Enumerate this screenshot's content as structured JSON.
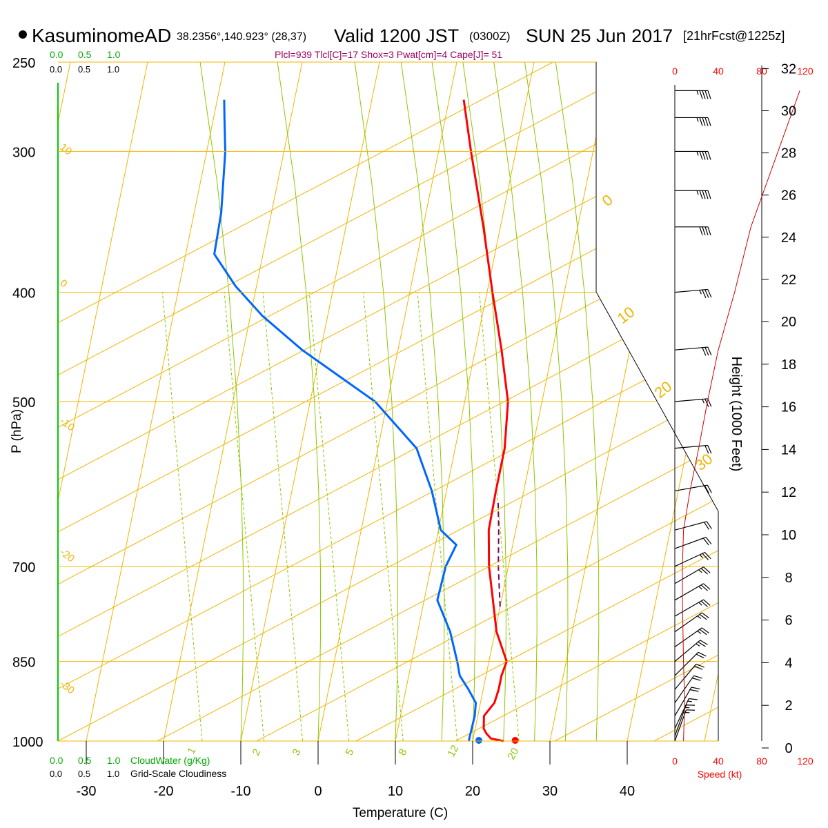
{
  "header": {
    "station": "KasuminomeAD",
    "coords": "38.2356°,140.923° (28,37)",
    "valid_label": "Valid 1200 JST",
    "utc": "(0300Z)",
    "date": "SUN 25 Jun 2017",
    "forecast": "[21hrFcst@1225z]",
    "indices": "Plcl=939 Tlcl[C]=17 Shox=3 Pwat[cm]=4 Cape[J]= 51"
  },
  "colors": {
    "isotherm": "#f0b400",
    "dry_adiabat": "#f0b400",
    "moist_adiabat": "#88c800",
    "mixing_ratio": "#88c800",
    "temperature": "#ff0000",
    "dewpoint": "#0066ff",
    "parcel": "#800060",
    "cloudwater": "#00aa00",
    "speed": "#ff0000",
    "height_profile": "#cc0000",
    "indices_text": "#990066"
  },
  "scales": {
    "cloudwater_top": [
      "0.0",
      "0.5",
      "1.0"
    ],
    "cloudiness_top": [
      "0.0",
      "0.5",
      "1.0"
    ],
    "cloudwater_bottom": [
      "0.0",
      "0.5",
      "1.0"
    ],
    "cloudwater_label": "CloudWater (g/Kg)",
    "cloudiness_bottom": [
      "0.0",
      "0.5",
      "1.0"
    ],
    "cloudiness_label": "Grid-Scale Cloudiness",
    "speed_ticks": [
      "0",
      "40",
      "80",
      "120"
    ],
    "speed_label": "Speed (kt)"
  },
  "chart_data": {
    "type": "line",
    "subtype": "skew-T log-P sounding",
    "xlabel": "Temperature (C)",
    "ylabel": "P (hPa)",
    "y2label": "Height (1000 Feet)",
    "x_ticks": [
      -30,
      -20,
      -10,
      0,
      10,
      20,
      30,
      40
    ],
    "p_ticks": [
      250,
      300,
      400,
      500,
      700,
      850,
      1000
    ],
    "height_ticks": [
      0,
      2,
      4,
      6,
      8,
      10,
      12,
      14,
      16,
      18,
      20,
      22,
      24,
      26,
      28,
      30,
      32
    ],
    "isotherm_labels": [
      {
        "t": 10,
        "text": "10"
      },
      {
        "t": 0,
        "text": "0"
      },
      {
        "t": -10,
        "text": "-10"
      },
      {
        "t": -20,
        "text": "-20"
      },
      {
        "t": -30,
        "text": "-30"
      }
    ],
    "right_isotherm_labels": [
      "0",
      "10",
      "20",
      "30"
    ],
    "mixing_ratio_labels": [
      "1",
      "2",
      "3",
      "5",
      "8",
      "12",
      "20"
    ],
    "temperature": [
      {
        "p": 1000,
        "t": 24.0
      },
      {
        "p": 995,
        "t": 22.3
      },
      {
        "p": 985,
        "t": 21.6
      },
      {
        "p": 975,
        "t": 21.1
      },
      {
        "p": 950,
        "t": 20.8
      },
      {
        "p": 925,
        "t": 21.8
      },
      {
        "p": 900,
        "t": 22.0
      },
      {
        "p": 875,
        "t": 22.0
      },
      {
        "p": 850,
        "t": 22.3
      },
      {
        "p": 800,
        "t": 20.2
      },
      {
        "p": 750,
        "t": 18.9
      },
      {
        "p": 700,
        "t": 17.5
      },
      {
        "p": 650,
        "t": 16.5
      },
      {
        "p": 600,
        "t": 16.4
      },
      {
        "p": 550,
        "t": 16.4
      },
      {
        "p": 500,
        "t": 15.6
      },
      {
        "p": 450,
        "t": 13.4
      },
      {
        "p": 400,
        "t": 10.7
      },
      {
        "p": 350,
        "t": 7.8
      },
      {
        "p": 300,
        "t": 4.2
      },
      {
        "p": 270,
        "t": 1.9
      }
    ],
    "dewpoint": [
      {
        "p": 1000,
        "t": 19.5
      },
      {
        "p": 990,
        "t": 19.5
      },
      {
        "p": 950,
        "t": 19.6
      },
      {
        "p": 925,
        "t": 19.4
      },
      {
        "p": 900,
        "t": 18.1
      },
      {
        "p": 875,
        "t": 16.6
      },
      {
        "p": 850,
        "t": 15.9
      },
      {
        "p": 800,
        "t": 14.2
      },
      {
        "p": 750,
        "t": 11.7
      },
      {
        "p": 700,
        "t": 11.9
      },
      {
        "p": 670,
        "t": 12.7
      },
      {
        "p": 650,
        "t": 10.3
      },
      {
        "p": 600,
        "t": 8.1
      },
      {
        "p": 550,
        "t": 5.0
      },
      {
        "p": 500,
        "t": -1.6
      },
      {
        "p": 450,
        "t": -12.4
      },
      {
        "p": 420,
        "t": -18.4
      },
      {
        "p": 395,
        "t": -22.7
      },
      {
        "p": 370,
        "t": -26.3
      },
      {
        "p": 340,
        "t": -26.5
      },
      {
        "p": 300,
        "t": -27.6
      },
      {
        "p": 280,
        "t": -28.6
      },
      {
        "p": 270,
        "t": -29.1
      }
    ],
    "parcel": [
      {
        "p": 760,
        "t": 20.0
      },
      {
        "p": 700,
        "t": 18.7
      },
      {
        "p": 650,
        "t": 17.8
      },
      {
        "p": 615,
        "t": 17.0
      }
    ],
    "surface_temperature": 25.5,
    "surface_dewpoint": 20.8,
    "wind_barbs": [
      {
        "p": 1000,
        "dir": 200,
        "spd": 15
      },
      {
        "p": 990,
        "dir": 200,
        "spd": 15
      },
      {
        "p": 975,
        "dir": 205,
        "spd": 15
      },
      {
        "p": 950,
        "dir": 210,
        "spd": 20
      },
      {
        "p": 925,
        "dir": 215,
        "spd": 20
      },
      {
        "p": 900,
        "dir": 220,
        "spd": 20
      },
      {
        "p": 875,
        "dir": 225,
        "spd": 20
      },
      {
        "p": 850,
        "dir": 230,
        "spd": 25
      },
      {
        "p": 825,
        "dir": 235,
        "spd": 25
      },
      {
        "p": 800,
        "dir": 235,
        "spd": 25
      },
      {
        "p": 775,
        "dir": 240,
        "spd": 25
      },
      {
        "p": 750,
        "dir": 240,
        "spd": 25
      },
      {
        "p": 725,
        "dir": 240,
        "spd": 25
      },
      {
        "p": 700,
        "dir": 245,
        "spd": 25
      },
      {
        "p": 675,
        "dir": 250,
        "spd": 20
      },
      {
        "p": 650,
        "dir": 255,
        "spd": 20
      },
      {
        "p": 600,
        "dir": 260,
        "spd": 20
      },
      {
        "p": 550,
        "dir": 265,
        "spd": 20
      },
      {
        "p": 500,
        "dir": 265,
        "spd": 25
      },
      {
        "p": 450,
        "dir": 265,
        "spd": 30
      },
      {
        "p": 400,
        "dir": 265,
        "spd": 35
      },
      {
        "p": 350,
        "dir": 270,
        "spd": 40
      },
      {
        "p": 325,
        "dir": 270,
        "spd": 45
      },
      {
        "p": 300,
        "dir": 270,
        "spd": 45
      },
      {
        "p": 280,
        "dir": 270,
        "spd": 45
      },
      {
        "p": 265,
        "dir": 270,
        "spd": 45
      }
    ],
    "speed_profile": [
      {
        "p": 1000,
        "spd": 8
      },
      {
        "p": 925,
        "spd": 9
      },
      {
        "p": 850,
        "spd": 8
      },
      {
        "p": 750,
        "spd": 7
      },
      {
        "p": 700,
        "spd": 7
      },
      {
        "p": 650,
        "spd": 8
      },
      {
        "p": 600,
        "spd": 14
      },
      {
        "p": 550,
        "spd": 22
      },
      {
        "p": 500,
        "spd": 30
      },
      {
        "p": 450,
        "spd": 40
      },
      {
        "p": 400,
        "spd": 55
      },
      {
        "p": 350,
        "spd": 70
      },
      {
        "p": 300,
        "spd": 95
      },
      {
        "p": 265,
        "spd": 115
      }
    ]
  }
}
